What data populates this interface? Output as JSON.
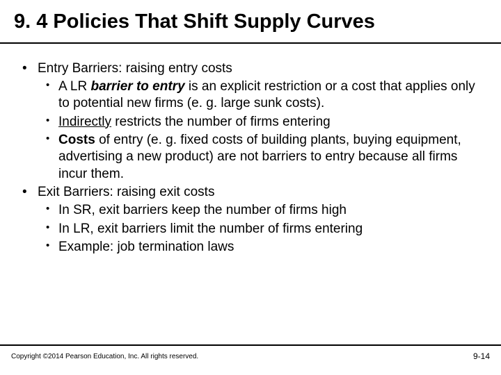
{
  "title": "9. 4  Policies That Shift Supply Curves",
  "bullets": {
    "entry": {
      "label": "Entry Barriers:  raising entry costs",
      "sub": {
        "a_pre": "A LR ",
        "a_bold": "barrier to entry",
        "a_post": " is an explicit restriction or a cost that applies only to potential new firms (e. g. large sunk costs).",
        "b_under": "Indirectly",
        "b_post": " restricts the number of firms entering",
        "c_bold": "Costs",
        "c_post": " of entry (e. g. fixed costs of building plants, buying equipment, advertising a new product) are not barriers to entry because all firms incur them."
      }
    },
    "exit": {
      "label": "Exit Barriers:  raising exit costs",
      "sub": {
        "a": "In SR, exit barriers keep the number of firms high",
        "b": "In LR, exit barriers limit the number of firms entering",
        "c": "Example:  job termination laws"
      }
    }
  },
  "footer": {
    "copyright": "Copyright ©2014 Pearson Education, Inc. All rights reserved.",
    "page": "9-14"
  },
  "colors": {
    "bg": "#ffffff",
    "text": "#000000",
    "divider": "#000000"
  },
  "typography": {
    "title_fontsize": 29,
    "body_fontsize": 19,
    "footer_fontsize": 10
  }
}
